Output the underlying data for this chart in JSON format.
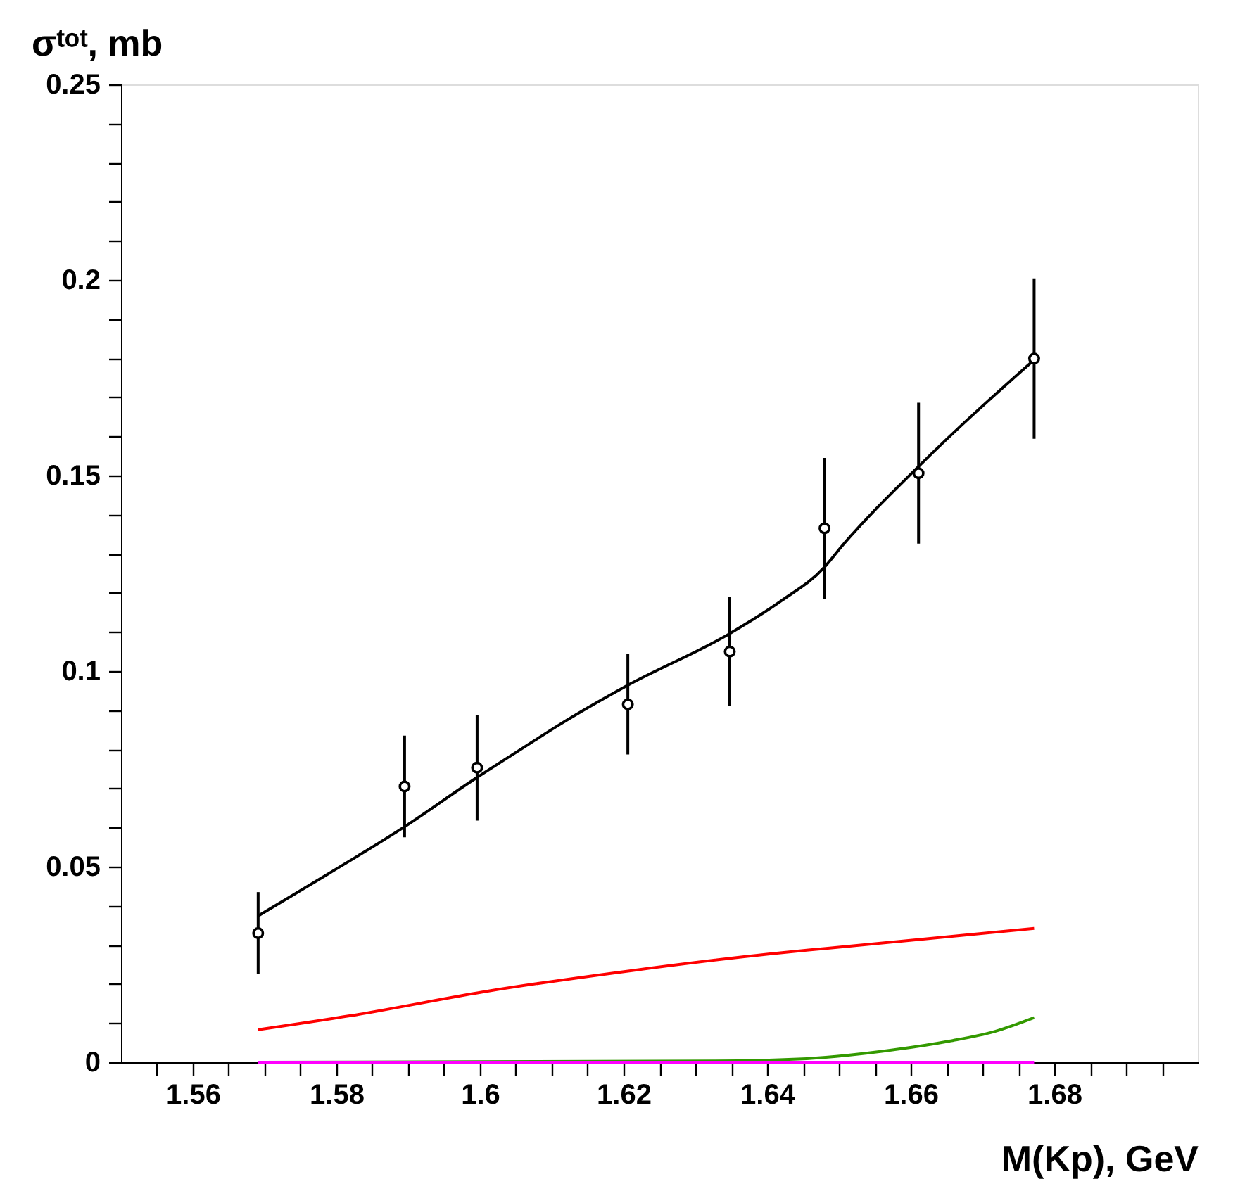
{
  "chart_data": {
    "type": "scatter",
    "xlabel": "M(Kp), GeV",
    "ylabel": "σᵗᵒᵗ, mb",
    "xlim": [
      1.55,
      1.7
    ],
    "ylim": [
      0,
      0.25
    ],
    "xticks": [
      {
        "value": 1.555,
        "label": null
      },
      1.56,
      {
        "value": 1.565,
        "label": null
      },
      {
        "value": 1.57,
        "label": null
      },
      {
        "value": 1.575,
        "label": null
      },
      1.58,
      {
        "value": 1.585,
        "label": null
      },
      {
        "value": 1.59,
        "label": null
      },
      {
        "value": 1.595,
        "label": null
      },
      {
        "value": 1.6,
        "label": "1.6"
      },
      {
        "value": 1.605,
        "label": null
      },
      {
        "value": 1.61,
        "label": null
      },
      {
        "value": 1.615,
        "label": null
      },
      1.62,
      {
        "value": 1.625,
        "label": null
      },
      {
        "value": 1.63,
        "label": null
      },
      {
        "value": 1.635,
        "label": null
      },
      1.64,
      {
        "value": 1.645,
        "label": null
      },
      {
        "value": 1.65,
        "label": null
      },
      {
        "value": 1.655,
        "label": null
      },
      1.66,
      {
        "value": 1.665,
        "label": null
      },
      {
        "value": 1.67,
        "label": null
      },
      {
        "value": 1.675,
        "label": null
      },
      1.68,
      {
        "value": 1.685,
        "label": null
      },
      {
        "value": 1.69,
        "label": null
      },
      {
        "value": 1.695,
        "label": null
      }
    ],
    "yticks": [
      0,
      {
        "value": 0.01,
        "label": null
      },
      {
        "value": 0.02,
        "label": null
      },
      {
        "value": 0.03,
        "label": null
      },
      {
        "value": 0.04,
        "label": null
      },
      0.05,
      {
        "value": 0.06,
        "label": null
      },
      {
        "value": 0.07,
        "label": null
      },
      {
        "value": 0.08,
        "label": null
      },
      {
        "value": 0.09,
        "label": null
      },
      {
        "value": 0.1,
        "label": "0.1"
      },
      {
        "value": 0.11,
        "label": null
      },
      {
        "value": 0.12,
        "label": null
      },
      {
        "value": 0.13,
        "label": null
      },
      {
        "value": 0.14,
        "label": null
      },
      0.15,
      {
        "value": 0.16,
        "label": null
      },
      {
        "value": 0.17,
        "label": null
      },
      {
        "value": 0.18,
        "label": null
      },
      {
        "value": 0.19,
        "label": null
      },
      {
        "value": 0.2,
        "label": "0.2"
      },
      {
        "value": 0.21,
        "label": null
      },
      {
        "value": 0.22,
        "label": null
      },
      {
        "value": 0.23,
        "label": null
      },
      {
        "value": 0.24,
        "label": null
      },
      0.25
    ],
    "grid": false,
    "series": [
      {
        "type": "line",
        "color": "#000000",
        "marker": "none",
        "line_style": "solid",
        "x": [
          1.5691,
          1.5789,
          1.5894,
          1.5995,
          1.6062,
          1.6108,
          1.6206,
          1.6348,
          1.642,
          1.648,
          1.6503,
          1.6612,
          1.6772
        ],
        "values": [
          0.0374,
          0.0482,
          0.0601,
          0.0727,
          0.0806,
          0.086,
          0.0964,
          0.1096,
          0.118,
          0.1266,
          0.1317,
          0.1525,
          0.1796
        ]
      },
      {
        "type": "line",
        "color": "#ff0000",
        "marker": "none",
        "line_style": "solid",
        "x": [
          1.5691,
          1.582,
          1.6015,
          1.621,
          1.6404,
          1.6482,
          1.6772
        ],
        "values": [
          0.0083,
          0.0119,
          0.0183,
          0.0234,
          0.0277,
          0.0291,
          0.0342
        ]
      },
      {
        "type": "line",
        "color": "#339900",
        "marker": "none",
        "line_style": "solid",
        "x": [
          1.5691,
          1.6326,
          1.6443,
          1.656,
          1.6654,
          1.6716,
          1.6772
        ],
        "values": [
          0,
          0.0003,
          0.0008,
          0.0028,
          0.0054,
          0.0078,
          0.0114
        ]
      },
      {
        "type": "line",
        "color": "#ff00ff",
        "marker": "none",
        "line_style": "solid",
        "x": [
          1.5691,
          1.6772
        ],
        "values": [
          0,
          0
        ]
      },
      {
        "color": "#000000",
        "marker": "circle",
        "x": [
          1.5691,
          1.5895,
          1.5996,
          1.6206,
          1.6348,
          1.648,
          1.6611,
          1.6772
        ],
        "values": [
          0.033,
          0.0705,
          0.0753,
          0.0915,
          0.105,
          0.1365,
          0.1506,
          0.1799
        ],
        "errors": [
          0.0105,
          0.013,
          0.0135,
          0.0128,
          0.014,
          0.018,
          0.018,
          0.0205
        ]
      }
    ]
  }
}
